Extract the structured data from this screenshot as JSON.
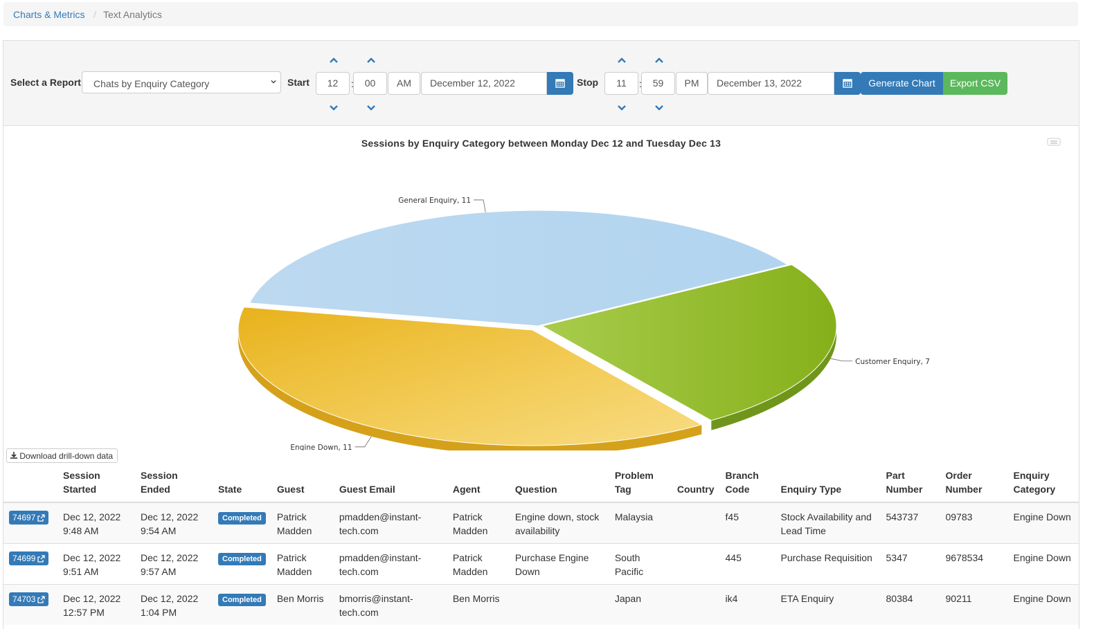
{
  "breadcrumb": {
    "parent": "Charts & Metrics",
    "separator": "/",
    "current": "Text Analytics"
  },
  "controls": {
    "report_label": "Select a Report",
    "report_value": "Chats by Enquiry Category",
    "start_label": "Start",
    "start_hour": "12",
    "start_minute": "00",
    "start_ampm": "AM",
    "start_date": "December 12, 2022",
    "stop_label": "Stop",
    "stop_hour": "11",
    "stop_minute": "59",
    "stop_ampm": "PM",
    "stop_date": "December 13, 2022",
    "time_separator": ":",
    "generate_label": "Generate Chart",
    "export_label": "Export CSV"
  },
  "colors": {
    "primary": "#337ab7",
    "success": "#5cb85c",
    "general": "#b8d7ef",
    "engine": "#efc12e",
    "customer": "#9cc43a"
  },
  "chart_data": {
    "type": "pie",
    "title": "Sessions by Enquiry Category between Monday Dec 12 and Tuesday Dec 13",
    "slices": [
      {
        "name": "General Enquiry",
        "value": 11,
        "label": "General Enquiry, 11"
      },
      {
        "name": "Customer Enquiry",
        "value": 7,
        "label": "Customer Enquiry, 7"
      },
      {
        "name": "Engine Down",
        "value": 11,
        "label": "Engine Down, 11"
      }
    ],
    "style": "3d"
  },
  "download_label": "Download drill-down data",
  "table": {
    "headers": {
      "started_1": "Session",
      "started_2": "Started",
      "ended": "Session Ended",
      "state": "State",
      "guest": "Guest",
      "email": "Guest Email",
      "agent": "Agent",
      "question": "Question",
      "problem_1": "Problem",
      "problem_2": "Tag",
      "country": "Country",
      "branch_1": "Branch",
      "branch_2": "Code",
      "enquiry_type": "Enquiry Type",
      "part_1": "Part",
      "part_2": "Number",
      "order_1": "Order",
      "order_2": "Number",
      "category_1": "Enquiry",
      "category_2": "Category"
    },
    "rows": [
      {
        "id": "74697",
        "started_date": "Dec 12, 2022",
        "started_time": "9:48 AM",
        "ended_date": "Dec 12, 2022",
        "ended_time": "9:54 AM",
        "state": "Completed",
        "guest_1": "Patrick",
        "guest_2": "Madden",
        "email_1": "pmadden@instant-",
        "email_2": "tech.com",
        "agent_1": "Patrick",
        "agent_2": "Madden",
        "question_1": "Engine down, stock",
        "question_2": "availability",
        "problem_1": "Malaysia",
        "problem_2": "",
        "country": "",
        "branch": "f45",
        "type_1": "Stock Availability and",
        "type_2": "Lead Time",
        "part": "543737",
        "order": "09783",
        "category": "Engine Down"
      },
      {
        "id": "74699",
        "started_date": "Dec 12, 2022",
        "started_time": "9:51 AM",
        "ended_date": "Dec 12, 2022",
        "ended_time": "9:57 AM",
        "state": "Completed",
        "guest_1": "Patrick",
        "guest_2": "Madden",
        "email_1": "pmadden@instant-",
        "email_2": "tech.com",
        "agent_1": "Patrick",
        "agent_2": "Madden",
        "question_1": "Purchase Engine",
        "question_2": "Down",
        "problem_1": "South",
        "problem_2": "Pacific",
        "country": "",
        "branch": "445",
        "type_1": "Purchase Requisition",
        "type_2": "",
        "part": "5347",
        "order": "9678534",
        "category": "Engine Down"
      },
      {
        "id": "74703",
        "started_date": "Dec 12, 2022",
        "started_time": "12:57 PM",
        "ended_date": "Dec 12, 2022",
        "ended_time": "1:04 PM",
        "state": "Completed",
        "guest_1": "Ben Morris",
        "guest_2": "",
        "email_1": "bmorris@instant-",
        "email_2": "tech.com",
        "agent_1": "Ben Morris",
        "agent_2": "",
        "question_1": "",
        "question_2": "",
        "problem_1": "Japan",
        "problem_2": "",
        "country": "",
        "branch": "ik4",
        "type_1": "ETA Enquiry",
        "type_2": "",
        "part": "80384",
        "order": "90211",
        "category": "Engine Down"
      }
    ]
  }
}
